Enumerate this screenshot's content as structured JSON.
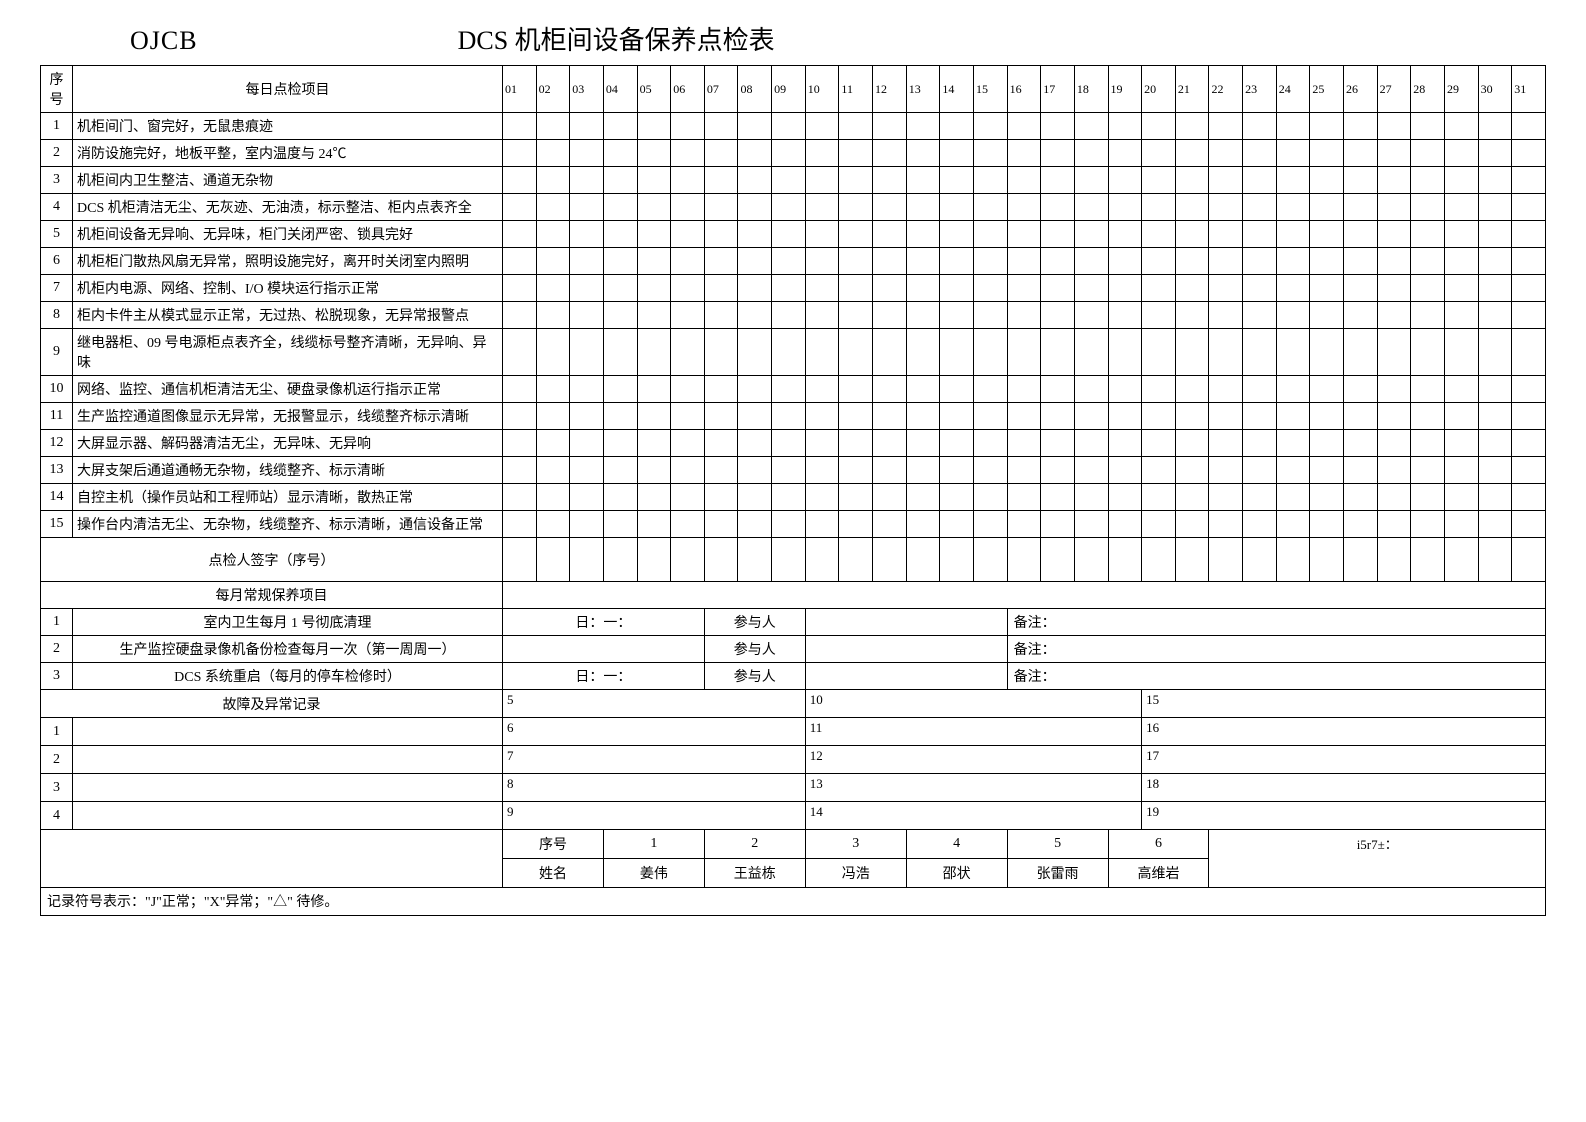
{
  "header": {
    "code": "OJCB",
    "title": "DCS 机柜间设备保养点检表"
  },
  "columns": {
    "seq": "序号",
    "daily_item": "每日点检项目"
  },
  "days": [
    "01",
    "02",
    "03",
    "04",
    "05",
    "06",
    "07",
    "08",
    "09",
    "10",
    "11",
    "12",
    "13",
    "14",
    "15",
    "16",
    "17",
    "18",
    "19",
    "20",
    "21",
    "22",
    "23",
    "24",
    "25",
    "26",
    "27",
    "28",
    "29",
    "30",
    "31"
  ],
  "daily_items": [
    {
      "n": "1",
      "t": "机柜间门、窗完好，无鼠患痕迹"
    },
    {
      "n": "2",
      "t": "消防设施完好，地板平整，室内温度与 24℃"
    },
    {
      "n": "3",
      "t": "机柜间内卫生整洁、通道无杂物"
    },
    {
      "n": "4",
      "t": "DCS 机柜清洁无尘、无灰迹、无油渍，标示整洁、柜内点表齐全"
    },
    {
      "n": "5",
      "t": "机柜间设备无异响、无异味，柜门关闭严密、锁具完好"
    },
    {
      "n": "6",
      "t": "机柜柜门散热风扇无异常，照明设施完好，离开时关闭室内照明"
    },
    {
      "n": "7",
      "t": "机柜内电源、网络、控制、I/O 模块运行指示正常"
    },
    {
      "n": "8",
      "t": "柜内卡件主从模式显示正常，无过热、松脱现象，无异常报警点"
    },
    {
      "n": "9",
      "t": "继电器柜、09 号电源柜点表齐全，线缆标号整齐清晰，无异响、异味"
    },
    {
      "n": "10",
      "t": "网络、监控、通信机柜清洁无尘、硬盘录像机运行指示正常"
    },
    {
      "n": "11",
      "t": "生产监控通道图像显示无异常，无报警显示，线缆整齐标示清晰"
    },
    {
      "n": "12",
      "t": "大屏显示器、解码器清洁无尘，无异味、无异响"
    },
    {
      "n": "13",
      "t": "大屏支架后通道通畅无杂物，线缆整齐、标示清晰"
    },
    {
      "n": "14",
      "t": "自控主机（操作员站和工程师站）显示清晰，散热正常"
    },
    {
      "n": "15",
      "t": "操作台内清洁无尘、无杂物，线缆整齐、标示清晰，通信设备正常"
    }
  ],
  "signature_label": "点检人签字（序号）",
  "monthly_header": "每月常规保养项目",
  "monthly_items": [
    {
      "n": "1",
      "t": "室内卫生每月 1 号彻底清理",
      "date": "日：一：",
      "p": "参与人",
      "r": "备注："
    },
    {
      "n": "2",
      "t": "生产监控硬盘录像机备份检查每月一次（第一周周一）",
      "date": "",
      "p": "参与人",
      "r": "备注："
    },
    {
      "n": "3",
      "t": "DCS 系统重启（每月的停车检修时）",
      "date": "日：一：",
      "p": "参与人",
      "r": "备注："
    }
  ],
  "fault_header": "故障及异常记录",
  "fault_rows": [
    {
      "a": "",
      "b": "5",
      "c": "10",
      "d": "15"
    },
    {
      "a": "1",
      "b": "6",
      "c": "11",
      "d": "16"
    },
    {
      "a": "2",
      "b": "7",
      "c": "12",
      "d": "17"
    },
    {
      "a": "3",
      "b": "8",
      "c": "13",
      "d": "18"
    },
    {
      "a": "4",
      "b": "9",
      "c": "14",
      "d": "19"
    }
  ],
  "staff": {
    "seq_label": "序号",
    "name_label": "姓名",
    "nums": [
      "1",
      "2",
      "3",
      "4",
      "5",
      "6"
    ],
    "names": [
      "姜伟",
      "王益栋",
      "冯浩",
      "邵状",
      "张雷雨",
      "高维岩"
    ],
    "sign_label": "i5r7±："
  },
  "legend": "记录符号表示：\"J\"正常；\"X\"异常；\"△\" 待修。"
}
